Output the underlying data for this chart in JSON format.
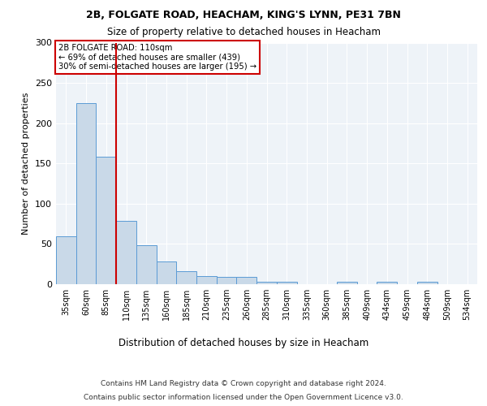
{
  "title1": "2B, FOLGATE ROAD, HEACHAM, KING'S LYNN, PE31 7BN",
  "title2": "Size of property relative to detached houses in Heacham",
  "xlabel": "Distribution of detached houses by size in Heacham",
  "ylabel": "Number of detached properties",
  "bar_color": "#c9d9e8",
  "bar_edge_color": "#5b9bd5",
  "categories": [
    "35sqm",
    "60sqm",
    "85sqm",
    "110sqm",
    "135sqm",
    "160sqm",
    "185sqm",
    "210sqm",
    "235sqm",
    "260sqm",
    "285sqm",
    "310sqm",
    "335sqm",
    "360sqm",
    "385sqm",
    "409sqm",
    "434sqm",
    "459sqm",
    "484sqm",
    "509sqm",
    "534sqm"
  ],
  "values": [
    60,
    225,
    158,
    79,
    48,
    28,
    16,
    10,
    9,
    9,
    3,
    3,
    0,
    0,
    3,
    0,
    3,
    0,
    3,
    0,
    0
  ],
  "vline_x_index": 2.5,
  "vline_color": "#cc0000",
  "annotation_text": "2B FOLGATE ROAD: 110sqm\n← 69% of detached houses are smaller (439)\n30% of semi-detached houses are larger (195) →",
  "annotation_box_color": "#ffffff",
  "annotation_box_edge_color": "#cc0000",
  "ylim": [
    0,
    300
  ],
  "yticks": [
    0,
    50,
    100,
    150,
    200,
    250,
    300
  ],
  "footer1": "Contains HM Land Registry data © Crown copyright and database right 2024.",
  "footer2": "Contains public sector information licensed under the Open Government Licence v3.0.",
  "bg_color": "#eef3f8"
}
